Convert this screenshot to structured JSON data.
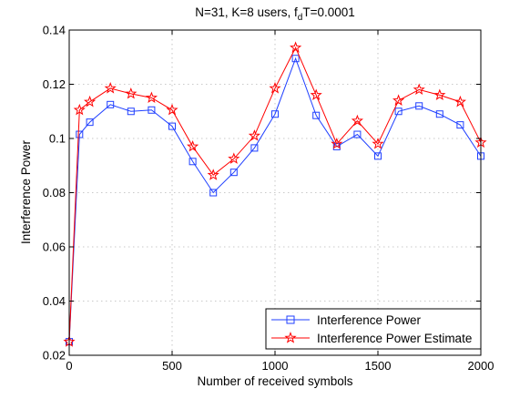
{
  "chart_data": {
    "type": "line",
    "title": {
      "main": "N=31, K=8 users, f",
      "sub": "d",
      "tail": "T=0.0001"
    },
    "xlabel": "Number of received symbols",
    "ylabel": "Interference Power",
    "xlim": [
      0,
      2000
    ],
    "ylim": [
      0.02,
      0.14
    ],
    "xticks": [
      0,
      500,
      1000,
      1500,
      2000
    ],
    "xtick_labels": [
      "0",
      "500",
      "1000",
      "1500",
      "2000"
    ],
    "yticks": [
      0.02,
      0.04,
      0.06,
      0.08,
      0.1,
      0.12,
      0.14
    ],
    "ytick_labels": [
      "0.02",
      "0.04",
      "0.06",
      "0.08",
      "0.1",
      "0.12",
      "0.14"
    ],
    "grid": true,
    "legend_position": "bottom-right",
    "x": [
      0,
      50,
      100,
      200,
      300,
      400,
      500,
      600,
      700,
      800,
      900,
      1000,
      1100,
      1200,
      1300,
      1400,
      1500,
      1600,
      1700,
      1800,
      1900,
      2000
    ],
    "series": [
      {
        "name": "Interference Power",
        "color": "#1f3fff",
        "marker": "square",
        "values": [
          0.025,
          0.1015,
          0.106,
          0.1125,
          0.11,
          0.1105,
          0.1045,
          0.0915,
          0.08,
          0.0875,
          0.0965,
          0.109,
          0.1295,
          0.1085,
          0.097,
          0.1015,
          0.0935,
          0.11,
          0.112,
          0.109,
          0.105,
          0.0935
        ]
      },
      {
        "name": "Interference Power Estimate",
        "color": "#ff0000",
        "marker": "star",
        "values": [
          0.025,
          0.1105,
          0.1135,
          0.1185,
          0.1165,
          0.115,
          0.1105,
          0.097,
          0.0865,
          0.0925,
          0.101,
          0.1185,
          0.1335,
          0.116,
          0.098,
          0.1065,
          0.098,
          0.114,
          0.118,
          0.116,
          0.1135,
          0.0985
        ]
      }
    ]
  }
}
